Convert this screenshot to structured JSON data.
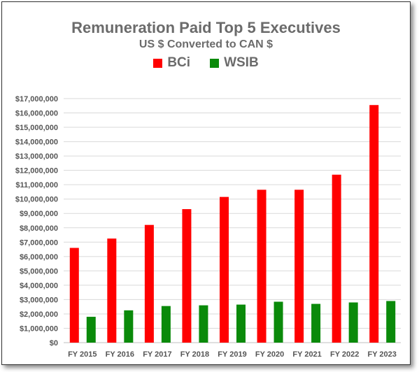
{
  "chart_data": {
    "type": "bar",
    "title": "Remuneration Paid Top 5 Executives",
    "subtitle": "US $ Converted to CAN $",
    "categories": [
      "FY 2015",
      "FY 2016",
      "FY 2017",
      "FY 2018",
      "FY 2019",
      "FY 2020",
      "FY 2021",
      "FY 2022",
      "FY 2023"
    ],
    "series": [
      {
        "name": "BCi",
        "color": "#ff0000",
        "values": [
          6600000,
          7250000,
          8200000,
          9300000,
          10150000,
          10650000,
          10650000,
          11700000,
          16550000
        ]
      },
      {
        "name": "WSIB",
        "color": "#0a8a0a",
        "values": [
          1800000,
          2250000,
          2550000,
          2600000,
          2650000,
          2850000,
          2700000,
          2800000,
          2900000
        ]
      }
    ],
    "ylim": [
      0,
      17000000
    ],
    "ytick_step": 1000000,
    "ytick_labels": [
      "$0",
      "$1,000,000",
      "$2,000,000",
      "$3,000,000",
      "$4,000,000",
      "$5,000,000",
      "$6,000,000",
      "$7,000,000",
      "$8,000,000",
      "$9,000,000",
      "$10,000,000",
      "$11,000,000",
      "$12,000,000",
      "$13,000,000",
      "$14,000,000",
      "$15,000,000",
      "$16,000,000",
      "$17,000,000"
    ],
    "xlabel": "",
    "ylabel": "",
    "grid": true,
    "legend_position": "top"
  }
}
